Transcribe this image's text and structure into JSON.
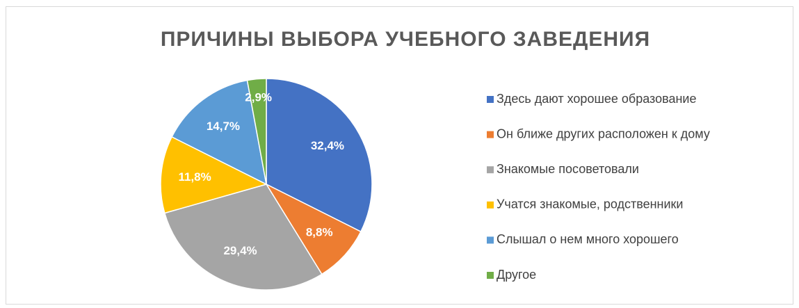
{
  "chart_data": {
    "type": "pie",
    "title": "ПРИЧИНЫ ВЫБОРА УЧЕБНОГО ЗАВЕДЕНИЯ",
    "categories": [
      "Здесь дают хорошее образование",
      "Он ближе других расположен к дому",
      "Знакомые посоветовали",
      "Учатся знакомые, родственники",
      "Слышал о нем много хорошего",
      "Другое"
    ],
    "values": [
      32.4,
      8.8,
      29.4,
      11.8,
      14.7,
      2.9
    ],
    "value_labels": [
      "32,4%",
      "8,8%",
      "29,4%",
      "11,8%",
      "14,7%",
      "2,9%"
    ],
    "colors": [
      "#4472c4",
      "#ed7d31",
      "#a5a5a5",
      "#ffc000",
      "#5b9bd5",
      "#70ad47"
    ],
    "legend": "right"
  }
}
